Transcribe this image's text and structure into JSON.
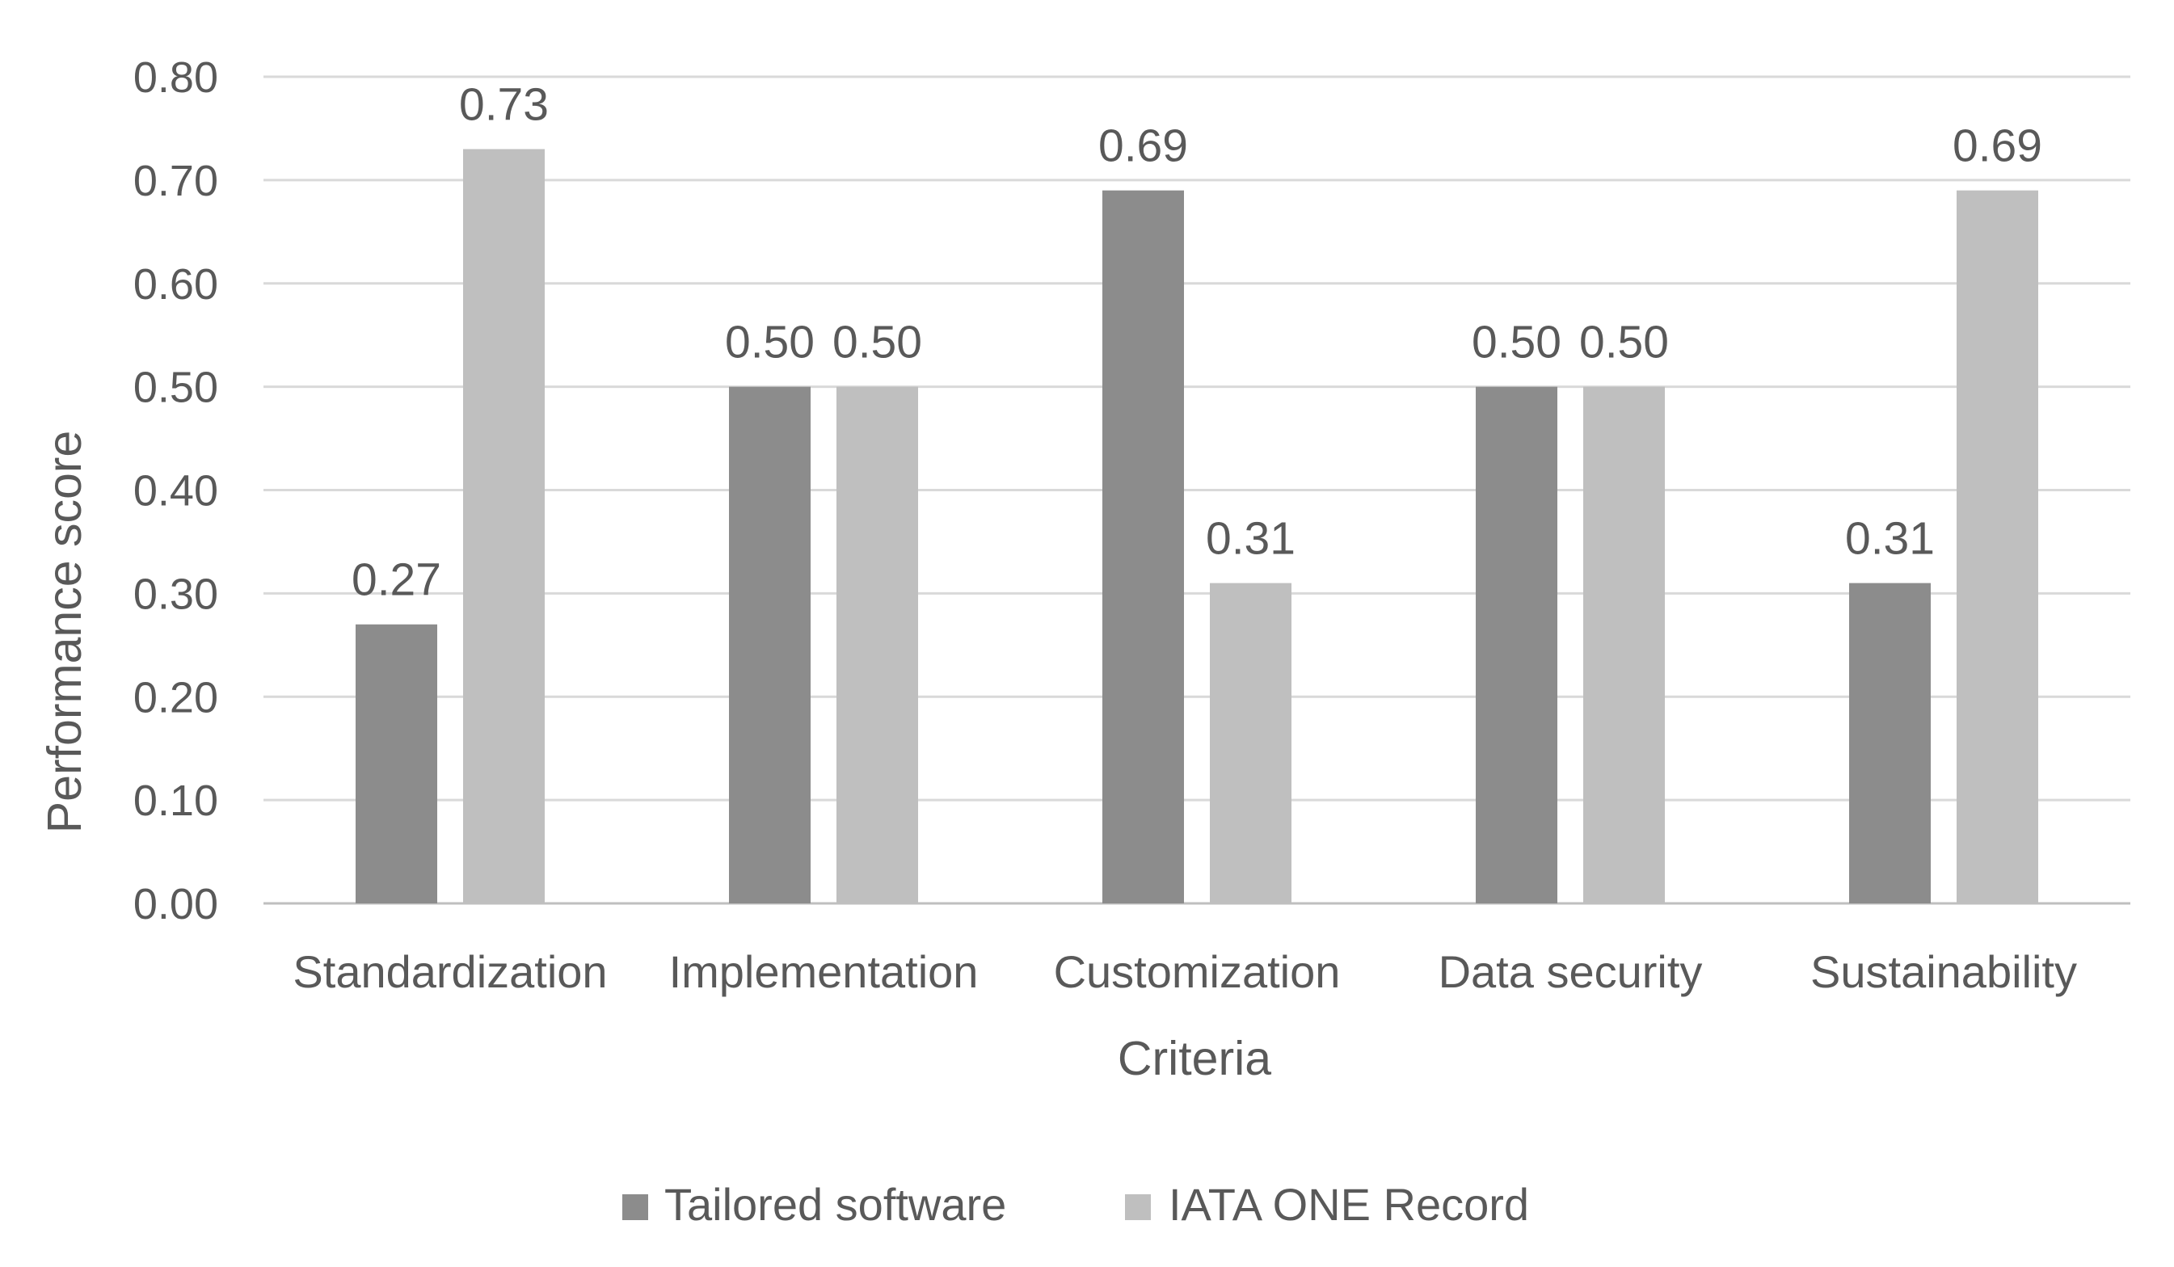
{
  "chart_data": {
    "type": "bar",
    "title": "",
    "xlabel": "Criteria",
    "ylabel": "Performance score",
    "ylim": [
      0,
      0.8
    ],
    "yticks": [
      "0.00",
      "0.10",
      "0.20",
      "0.30",
      "0.40",
      "0.50",
      "0.60",
      "0.70",
      "0.80"
    ],
    "grid": true,
    "legend_position": "bottom",
    "categories": [
      "Standardization",
      "Implementation",
      "Customization",
      "Data security",
      "Sustainability"
    ],
    "series": [
      {
        "name": "Tailored software",
        "color": "#8c8c8c",
        "values": [
          0.27,
          0.5,
          0.69,
          0.5,
          0.31
        ],
        "labels": [
          "0.27",
          "0.50",
          "0.69",
          "0.50",
          "0.31"
        ]
      },
      {
        "name": "IATA ONE Record",
        "color": "#bfbfbf",
        "values": [
          0.73,
          0.5,
          0.31,
          0.5,
          0.69
        ],
        "labels": [
          "0.73",
          "0.50",
          "0.31",
          "0.50",
          "0.69"
        ]
      }
    ]
  }
}
